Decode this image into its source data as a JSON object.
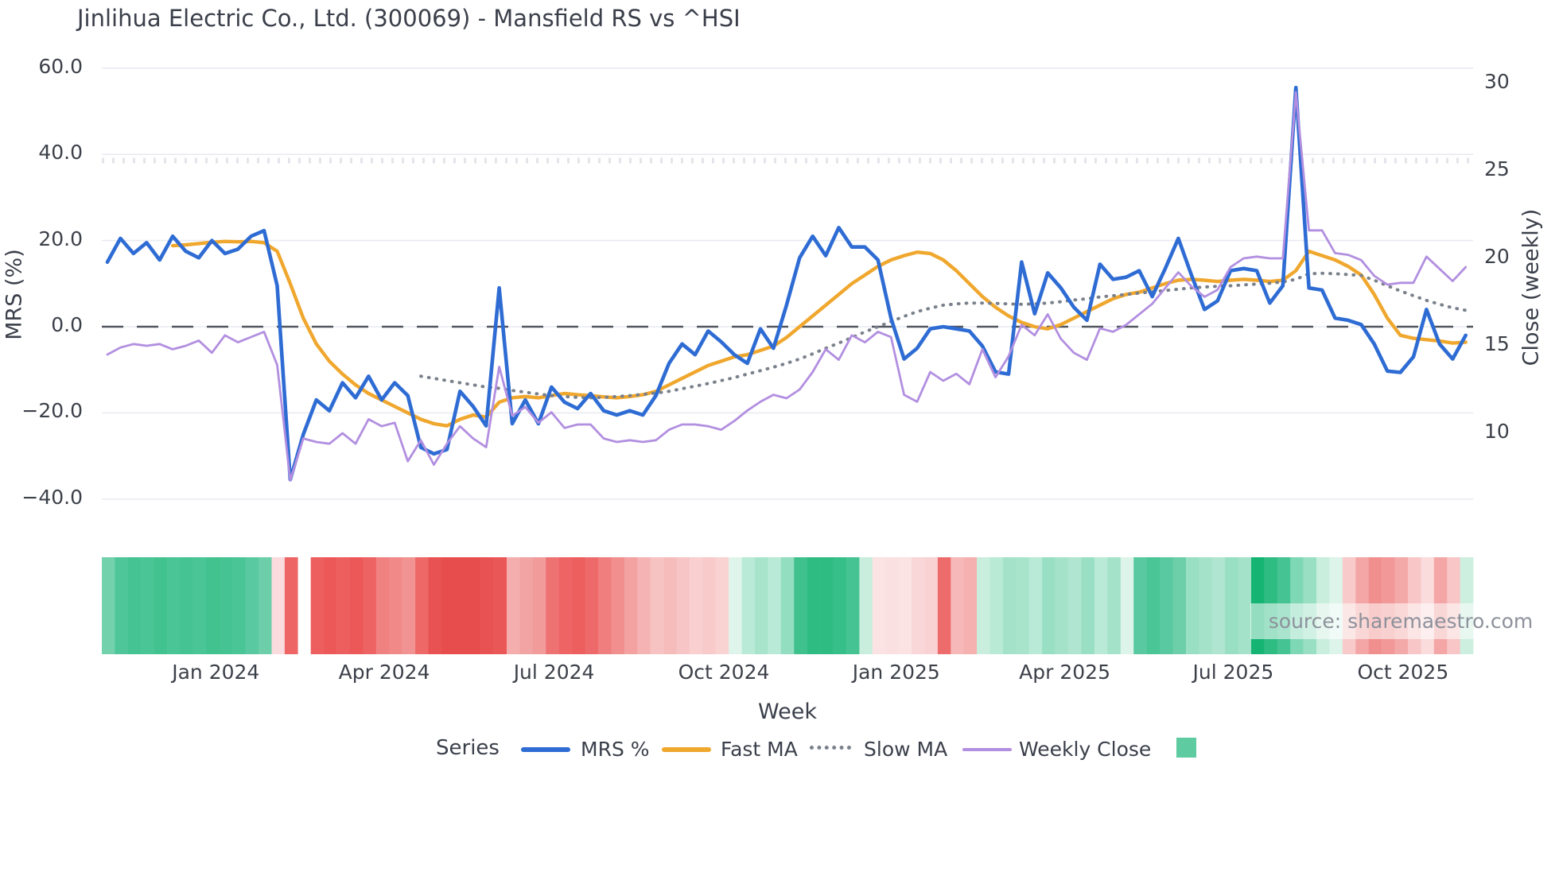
{
  "title": "Jinlihua Electric Co., Ltd. (300069) - Mansfield RS vs ^HSI",
  "source_note": "source: sharemaestro.com",
  "legend": {
    "title": "Series",
    "items": [
      {
        "label": "MRS %",
        "color": "#2e6cd4",
        "style": "solid"
      },
      {
        "label": "Fast MA",
        "color": "#f0a72e",
        "style": "solid"
      },
      {
        "label": "Slow MA",
        "color": "#7b818c",
        "style": "dotted"
      },
      {
        "label": "Weekly Close",
        "color": "#b28fe0",
        "style": "solid"
      },
      {
        "label": "",
        "color": "#5ecba1",
        "style": "square"
      }
    ]
  },
  "chart_data": {
    "type": "line",
    "title": "Jinlihua Electric Co., Ltd. (300069) - Mansfield RS vs ^HSI",
    "x_axis": {
      "label": "Week",
      "unit": "weekly, Nov 2023 - Nov 2025",
      "ticks": [
        {
          "label": "Jan 2024",
          "week": 8.3
        },
        {
          "label": "Apr 2024",
          "week": 21.2
        },
        {
          "label": "Jul 2024",
          "week": 34.2
        },
        {
          "label": "Oct 2024",
          "week": 47.2
        },
        {
          "label": "Jan 2025",
          "week": 60.4
        },
        {
          "label": "Apr 2025",
          "week": 73.3
        },
        {
          "label": "Jul 2025",
          "week": 86.2
        },
        {
          "label": "Oct 2025",
          "week": 99.2
        }
      ],
      "n_weeks": 105
    },
    "y_left": {
      "label": "MRS (%)",
      "ticks": [
        {
          "label": "60.0",
          "value": 60
        },
        {
          "label": "40.0",
          "value": 40
        },
        {
          "label": "20.0",
          "value": 20
        },
        {
          "label": "0.0",
          "value": 0
        },
        {
          "label": "−20.0",
          "value": -20
        },
        {
          "label": "−40.0",
          "value": -40
        }
      ],
      "range": [
        -45,
        62
      ],
      "zero_line_dashed": true
    },
    "y_right": {
      "label": "Close (weekly)",
      "ticks": [
        {
          "label": "30",
          "value": 30
        },
        {
          "label": "25",
          "value": 25
        },
        {
          "label": "20",
          "value": 20
        },
        {
          "label": "15",
          "value": 15
        },
        {
          "label": "10",
          "value": 10
        }
      ],
      "range": [
        7,
        31
      ]
    },
    "grid": "horizontal-light",
    "legend_position": "bottom",
    "series": [
      {
        "name": "MRS %",
        "axis": "left",
        "color": "#2e6cd4",
        "style": "solid",
        "width": 4.6,
        "start_week": 0,
        "values": [
          15.0,
          20.5,
          17.0,
          19.5,
          15.5,
          21.0,
          17.5,
          16.0,
          20.0,
          17.0,
          18.0,
          21.0,
          22.3,
          9.5,
          -35.5,
          -25.0,
          -17.0,
          -19.5,
          -13.0,
          -16.5,
          -11.5,
          -17.0,
          -13.0,
          -16.0,
          -28.0,
          -29.5,
          -28.5,
          -15.0,
          -18.5,
          -23.0,
          9.0,
          -22.5,
          -17.0,
          -22.5,
          -14.0,
          -17.5,
          -19.0,
          -15.5,
          -19.5,
          -20.5,
          -19.5,
          -20.5,
          -16.0,
          -8.5,
          -4.0,
          -6.5,
          -1.0,
          -3.5,
          -6.5,
          -8.5,
          -0.5,
          -5.0,
          5.0,
          16.0,
          21.0,
          16.5,
          23.0,
          18.5,
          18.5,
          15.5,
          2.0,
          -7.5,
          -5.0,
          -0.5,
          0.0,
          -0.5,
          -1.0,
          -4.5,
          -10.5,
          -11.0,
          15.0,
          3.0,
          12.5,
          9.0,
          4.5,
          1.5,
          14.5,
          11.0,
          11.5,
          13.0,
          7.0,
          13.5,
          20.5,
          12.0,
          4.0,
          6.0,
          13.0,
          13.5,
          13.0,
          5.5,
          9.5,
          55.5,
          9.0,
          8.5,
          2.0,
          1.5,
          0.5,
          -4.0,
          -10.3,
          -10.6,
          -7.0,
          4.0,
          -4.0,
          -7.5,
          -2.0
        ]
      },
      {
        "name": "Fast MA",
        "axis": "left",
        "color": "#f0a72e",
        "style": "solid",
        "width": 4.4,
        "start_week": 5,
        "values": [
          18.8,
          19.0,
          19.3,
          19.6,
          19.8,
          19.7,
          19.8,
          19.5,
          17.5,
          10.0,
          2.0,
          -4.0,
          -8.0,
          -11.0,
          -13.5,
          -15.5,
          -17.0,
          -18.5,
          -20.0,
          -21.5,
          -22.5,
          -23.0,
          -21.5,
          -20.5,
          -21.0,
          -17.5,
          -16.5,
          -16.2,
          -16.5,
          -16.0,
          -15.5,
          -15.8,
          -16.0,
          -16.3,
          -16.5,
          -16.2,
          -15.8,
          -15.0,
          -13.5,
          -12.0,
          -10.5,
          -9.0,
          -8.0,
          -7.0,
          -6.5,
          -5.5,
          -4.5,
          -2.5,
          0.0,
          2.5,
          5.0,
          7.5,
          10.0,
          12.0,
          14.0,
          15.5,
          16.5,
          17.3,
          17.0,
          15.5,
          13.0,
          10.0,
          7.0,
          4.5,
          2.5,
          1.0,
          0.0,
          -0.5,
          0.5,
          2.0,
          3.5,
          5.0,
          6.5,
          7.5,
          8.0,
          9.0,
          10.0,
          10.8,
          11.0,
          10.8,
          10.5,
          10.8,
          11.0,
          10.8,
          10.5,
          10.8,
          13.0,
          17.5,
          16.5,
          15.5,
          14.0,
          12.0,
          7.5,
          2.0,
          -2.0,
          -2.7,
          -3.0,
          -3.3,
          -3.8,
          -3.6
        ]
      },
      {
        "name": "Slow MA",
        "axis": "left",
        "color": "#7b818c",
        "style": "dotted",
        "width": 4,
        "start_week": 24,
        "values": [
          -11.5,
          -12.0,
          -12.5,
          -13.0,
          -13.5,
          -14.0,
          -14.3,
          -14.8,
          -15.2,
          -15.6,
          -16.0,
          -16.2,
          -16.4,
          -16.5,
          -16.4,
          -16.2,
          -16.0,
          -15.7,
          -15.4,
          -15.0,
          -14.4,
          -13.8,
          -13.2,
          -12.5,
          -11.8,
          -11.0,
          -10.2,
          -9.4,
          -8.5,
          -7.5,
          -6.3,
          -5.0,
          -3.8,
          -2.5,
          -1.2,
          0.0,
          1.2,
          2.4,
          3.5,
          4.3,
          5.0,
          5.3,
          5.5,
          5.5,
          5.4,
          5.3,
          5.2,
          5.3,
          5.5,
          5.8,
          6.2,
          6.5,
          6.9,
          7.2,
          7.5,
          7.8,
          8.1,
          8.4,
          8.7,
          9.0,
          9.2,
          9.4,
          9.5,
          9.7,
          9.9,
          10.1,
          10.4,
          11.0,
          12.3,
          12.4,
          12.3,
          12.1,
          11.9,
          10.8,
          9.5,
          8.3,
          7.2,
          6.1,
          5.2,
          4.4,
          3.8
        ]
      },
      {
        "name": "Weekly Close",
        "axis": "right",
        "color": "#b28fe0",
        "style": "solid",
        "width": 2.8,
        "start_week": 0,
        "values": [
          14.5,
          14.9,
          15.1,
          15.0,
          15.1,
          14.8,
          15.0,
          15.3,
          14.6,
          15.6,
          15.2,
          15.5,
          15.8,
          13.9,
          7.3,
          9.7,
          9.5,
          9.4,
          10.0,
          9.4,
          10.8,
          10.4,
          10.6,
          8.4,
          9.6,
          8.2,
          9.4,
          10.4,
          9.7,
          9.2,
          13.8,
          11.0,
          11.5,
          10.6,
          11.2,
          10.3,
          10.5,
          10.5,
          9.7,
          9.5,
          9.6,
          9.5,
          9.6,
          10.2,
          10.5,
          10.5,
          10.4,
          10.2,
          10.7,
          11.3,
          11.8,
          12.2,
          12.0,
          12.5,
          13.5,
          14.8,
          14.2,
          15.6,
          15.2,
          15.8,
          15.5,
          12.2,
          11.8,
          13.5,
          13.0,
          13.4,
          12.8,
          14.8,
          13.2,
          14.4,
          16.2,
          15.6,
          16.8,
          15.4,
          14.6,
          14.2,
          16.0,
          15.8,
          16.2,
          16.8,
          17.4,
          18.3,
          19.2,
          18.4,
          17.8,
          18.2,
          19.5,
          20.0,
          20.1,
          20.0,
          20.0,
          29.5,
          21.6,
          21.6,
          20.3,
          20.2,
          19.9,
          19.0,
          18.5,
          18.6,
          18.6,
          20.1,
          19.4,
          18.7,
          19.5
        ]
      }
    ],
    "heatmap_strip": {
      "description": "weekly red/green sentiment strip under plot; white = missing week",
      "colors": [
        "#73d1ac",
        "#4ec69a",
        "#45c392",
        "#4ac596",
        "#41c28f",
        "#4ac596",
        "#45c392",
        "#4ac596",
        "#41c28f",
        "#45c392",
        "#4ac596",
        "#58c9a0",
        "#6ccfa9",
        "#fadcde",
        "#ee6565",
        "#ffffff",
        "#ed5e5e",
        "#ec5858",
        "#ed5e5e",
        "#ec5858",
        "#ed6262",
        "#f08181",
        "#f18989",
        "#f29393",
        "#ee6868",
        "#e95252",
        "#e84d4d",
        "#e84d4d",
        "#e84d4d",
        "#e95252",
        "#ea5757",
        "#f5aeae",
        "#f2a3a3",
        "#f29b9b",
        "#ef7272",
        "#ee6464",
        "#ed5e5e",
        "#ee6a6a",
        "#f07e7e",
        "#f18e8e",
        "#f3a1a1",
        "#f5b3b3",
        "#f7c2c2",
        "#f6bcbc",
        "#f7c5c5",
        "#f9cfcf",
        "#f8caca",
        "#f9d2d2",
        "#dff5ec",
        "#b9ead8",
        "#a8e4cc",
        "#b9ead8",
        "#93ddc0",
        "#3fc18e",
        "#2fbc83",
        "#2fbc83",
        "#37bf89",
        "#45c392",
        "#c9eedd",
        "#fbe3e4",
        "#fae0e1",
        "#fbe3e4",
        "#f9d6d7",
        "#f9d2d3",
        "#ee6b6b",
        "#f6b8b8",
        "#f5b0b0",
        "#c9eedd",
        "#b9ead6",
        "#a4e2ca",
        "#a8e4cc",
        "#b9ead8",
        "#99dfc3",
        "#a4e2ca",
        "#b0e6d1",
        "#99dfc3",
        "#b9ead8",
        "#a4e2ca",
        "#ddf4ea",
        "#58c9a0",
        "#4ac596",
        "#58c9a0",
        "#6ccfa9",
        "#99dfc3",
        "#a4e2ca",
        "#b0e6d1",
        "#99dfc3",
        "#a4e2ca",
        "#16b473",
        "#2fbc83",
        "#45c392",
        "#7ed8b5",
        "#99dfc3",
        "#c9eedd",
        "#ddf4ea",
        "#f8caca",
        "#f4a6a6",
        "#f18f8f",
        "#f29898",
        "#f4a9a9",
        "#f8c6c6",
        "#fadcdc",
        "#f4a6a6",
        "#f8c6c6",
        "#cdefdf"
      ]
    }
  }
}
